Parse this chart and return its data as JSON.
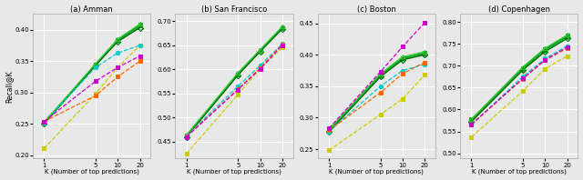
{
  "x": [
    1,
    5,
    10,
    20
  ],
  "subplots": [
    {
      "title": "(a) Amman",
      "ylim": [
        0.195,
        0.425
      ],
      "yticks": [
        0.2,
        0.25,
        0.3,
        0.35,
        0.4
      ],
      "series": [
        {
          "color": "#00aa00",
          "linestyle": "-",
          "marker": "s",
          "filled": true,
          "values": [
            0.253,
            0.344,
            0.384,
            0.408
          ]
        },
        {
          "color": "#228B22",
          "linestyle": "-",
          "marker": "o",
          "filled": false,
          "values": [
            0.252,
            0.345,
            0.383,
            0.406
          ]
        },
        {
          "color": "#00cc44",
          "linestyle": "-",
          "marker": "o",
          "filled": false,
          "values": [
            0.251,
            0.344,
            0.382,
            0.404
          ]
        },
        {
          "color": "#006400",
          "linestyle": "-",
          "marker": "D",
          "filled": false,
          "values": [
            0.25,
            0.343,
            0.381,
            0.403
          ]
        },
        {
          "color": "#32cd32",
          "linestyle": "-",
          "marker": "^",
          "filled": false,
          "values": [
            0.252,
            0.346,
            0.385,
            0.409
          ]
        },
        {
          "color": "#cccc00",
          "linestyle": "--",
          "marker": "s",
          "filled": true,
          "values": [
            0.211,
            0.298,
            0.34,
            0.375
          ]
        },
        {
          "color": "#00cccc",
          "linestyle": "--",
          "marker": "o",
          "filled": true,
          "values": [
            0.252,
            0.34,
            0.363,
            0.375
          ]
        },
        {
          "color": "#ff6600",
          "linestyle": "--",
          "marker": "s",
          "filled": true,
          "values": [
            0.254,
            0.295,
            0.325,
            0.35
          ]
        },
        {
          "color": "#cc00cc",
          "linestyle": "--",
          "marker": "s",
          "filled": true,
          "values": [
            0.254,
            0.318,
            0.34,
            0.358
          ]
        }
      ]
    },
    {
      "title": "(b) San Francisco",
      "ylim": [
        0.415,
        0.715
      ],
      "yticks": [
        0.45,
        0.5,
        0.55,
        0.6,
        0.65,
        0.7
      ],
      "series": [
        {
          "color": "#00aa00",
          "linestyle": "-",
          "marker": "s",
          "filled": true,
          "values": [
            0.463,
            0.59,
            0.638,
            0.685
          ]
        },
        {
          "color": "#228B22",
          "linestyle": "-",
          "marker": "o",
          "filled": false,
          "values": [
            0.462,
            0.591,
            0.64,
            0.688
          ]
        },
        {
          "color": "#00cc44",
          "linestyle": "-",
          "marker": "o",
          "filled": false,
          "values": [
            0.461,
            0.589,
            0.638,
            0.686
          ]
        },
        {
          "color": "#006400",
          "linestyle": "-",
          "marker": "D",
          "filled": false,
          "values": [
            0.46,
            0.588,
            0.637,
            0.684
          ]
        },
        {
          "color": "#32cd32",
          "linestyle": "-",
          "marker": "^",
          "filled": false,
          "values": [
            0.464,
            0.593,
            0.641,
            0.689
          ]
        },
        {
          "color": "#cccc00",
          "linestyle": "--",
          "marker": "s",
          "filled": true,
          "values": [
            0.425,
            0.548,
            0.601,
            0.645
          ]
        },
        {
          "color": "#00cccc",
          "linestyle": "--",
          "marker": "o",
          "filled": true,
          "values": [
            0.462,
            0.565,
            0.608,
            0.653
          ]
        },
        {
          "color": "#ff6600",
          "linestyle": "--",
          "marker": "s",
          "filled": true,
          "values": [
            0.461,
            0.559,
            0.603,
            0.652
          ]
        },
        {
          "color": "#cc00cc",
          "linestyle": "--",
          "marker": "s",
          "filled": true,
          "values": [
            0.46,
            0.558,
            0.601,
            0.65
          ]
        }
      ]
    },
    {
      "title": "(c) Boston",
      "ylim": [
        0.235,
        0.465
      ],
      "yticks": [
        0.25,
        0.3,
        0.35,
        0.4,
        0.45
      ],
      "series": [
        {
          "color": "#00aa00",
          "linestyle": "-",
          "marker": "s",
          "filled": true,
          "values": [
            0.28,
            0.368,
            0.395,
            0.403
          ]
        },
        {
          "color": "#228B22",
          "linestyle": "-",
          "marker": "o",
          "filled": false,
          "values": [
            0.279,
            0.367,
            0.394,
            0.402
          ]
        },
        {
          "color": "#00cc44",
          "linestyle": "-",
          "marker": "o",
          "filled": false,
          "values": [
            0.278,
            0.366,
            0.393,
            0.401
          ]
        },
        {
          "color": "#006400",
          "linestyle": "-",
          "marker": "D",
          "filled": false,
          "values": [
            0.277,
            0.365,
            0.392,
            0.4
          ]
        },
        {
          "color": "#32cd32",
          "linestyle": "-",
          "marker": "^",
          "filled": false,
          "values": [
            0.281,
            0.37,
            0.397,
            0.405
          ]
        },
        {
          "color": "#cccc00",
          "linestyle": "--",
          "marker": "s",
          "filled": true,
          "values": [
            0.248,
            0.305,
            0.33,
            0.368
          ]
        },
        {
          "color": "#00cccc",
          "linestyle": "--",
          "marker": "o",
          "filled": true,
          "values": [
            0.278,
            0.35,
            0.375,
            0.385
          ]
        },
        {
          "color": "#ff6600",
          "linestyle": "--",
          "marker": "s",
          "filled": true,
          "values": [
            0.28,
            0.34,
            0.37,
            0.388
          ]
        },
        {
          "color": "#cc00cc",
          "linestyle": "--",
          "marker": "s",
          "filled": true,
          "values": [
            0.283,
            0.373,
            0.413,
            0.451
          ]
        }
      ]
    },
    {
      "title": "(d) Copenhagen",
      "ylim": [
        0.488,
        0.818
      ],
      "yticks": [
        0.5,
        0.55,
        0.6,
        0.65,
        0.7,
        0.75,
        0.8
      ],
      "series": [
        {
          "color": "#00aa00",
          "linestyle": "-",
          "marker": "s",
          "filled": true,
          "values": [
            0.577,
            0.695,
            0.738,
            0.768
          ]
        },
        {
          "color": "#228B22",
          "linestyle": "-",
          "marker": "o",
          "filled": false,
          "values": [
            0.575,
            0.693,
            0.736,
            0.766
          ]
        },
        {
          "color": "#00cc44",
          "linestyle": "-",
          "marker": "o",
          "filled": false,
          "values": [
            0.573,
            0.691,
            0.734,
            0.764
          ]
        },
        {
          "color": "#006400",
          "linestyle": "-",
          "marker": "D",
          "filled": false,
          "values": [
            0.572,
            0.69,
            0.732,
            0.762
          ]
        },
        {
          "color": "#32cd32",
          "linestyle": "-",
          "marker": "^",
          "filled": false,
          "values": [
            0.578,
            0.697,
            0.74,
            0.77
          ]
        },
        {
          "color": "#cccc00",
          "linestyle": "--",
          "marker": "s",
          "filled": true,
          "values": [
            0.537,
            0.642,
            0.693,
            0.722
          ]
        },
        {
          "color": "#00cccc",
          "linestyle": "--",
          "marker": "o",
          "filled": true,
          "values": [
            0.565,
            0.675,
            0.716,
            0.745
          ]
        },
        {
          "color": "#ff6600",
          "linestyle": "--",
          "marker": "s",
          "filled": true,
          "values": [
            0.565,
            0.67,
            0.712,
            0.74
          ]
        },
        {
          "color": "#cc00cc",
          "linestyle": "--",
          "marker": "s",
          "filled": true,
          "values": [
            0.566,
            0.671,
            0.713,
            0.742
          ]
        }
      ]
    }
  ],
  "xlabel": "K (Number of top predictions)",
  "ylabel": "Recall@K",
  "background_color": "#e8e8e8",
  "grid_color": "#ffffff",
  "xticks": [
    1,
    5,
    10,
    20
  ]
}
